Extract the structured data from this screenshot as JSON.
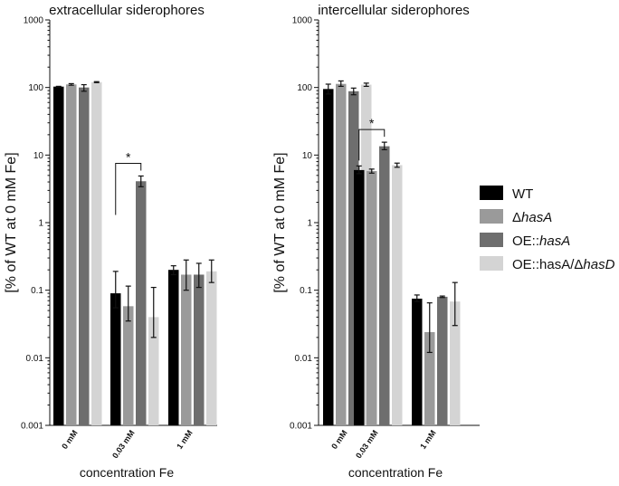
{
  "chart_data": [
    {
      "type": "bar",
      "title": "extracellular siderophores",
      "ylabel": "[% of WT at 0 mM Fe]",
      "xlabel": "concentration Fe",
      "yscale": "log",
      "ylim": [
        0.001,
        1000
      ],
      "yticks": [
        "0.001",
        "0.01",
        "0.1",
        "1",
        "10",
        "100",
        "1000"
      ],
      "categories": [
        "0 mM",
        "0.03 mM",
        "1 mM"
      ],
      "series": [
        {
          "name": "WT",
          "color": "#000000",
          "values": [
            103,
            0.09,
            0.2
          ],
          "errors": [
            [
              102,
              104
            ],
            [
              0.055,
              0.19
            ],
            [
              0.17,
              0.23
            ]
          ]
        },
        {
          "name": "ΔhasA",
          "color": "#9a9a9a",
          "values": [
            111,
            0.058,
            0.17
          ],
          "errors": [
            [
              108,
              114
            ],
            [
              0.035,
              0.115
            ],
            [
              0.1,
              0.28
            ]
          ]
        },
        {
          "name": "OE::hasA",
          "color": "#6e6e6e",
          "values": [
            100,
            4.1,
            0.17
          ],
          "errors": [
            [
              88,
              110
            ],
            [
              3.4,
              4.9
            ],
            [
              0.11,
              0.25
            ]
          ]
        },
        {
          "name": "OE::hasA/ΔhasD",
          "color": "#d4d4d4",
          "values": [
            120,
            0.04,
            0.19
          ],
          "errors": [
            [
              118,
              122
            ],
            [
              0.02,
              0.11
            ],
            [
              0.13,
              0.28
            ]
          ]
        }
      ],
      "annotations": [
        {
          "type": "significance",
          "label": "*",
          "category": "0.03 mM",
          "from_series": "WT",
          "to_series": "OE::hasA"
        }
      ]
    },
    {
      "type": "bar",
      "title": "intercellular siderophores",
      "ylabel": "[% of WT at 0 mM Fe]",
      "xlabel": "concentration Fe",
      "yscale": "log",
      "ylim": [
        0.001,
        1000
      ],
      "yticks": [
        "0.001",
        "0.01",
        "0.1",
        "1",
        "10",
        "100",
        "1000"
      ],
      "categories": [
        "0 mM",
        "0.03 mM",
        "1 mM"
      ],
      "series": [
        {
          "name": "WT",
          "color": "#000000",
          "values": [
            95,
            6,
            0.075
          ],
          "errors": [
            [
              80,
              112
            ],
            [
              5.3,
              6.9
            ],
            [
              0.068,
              0.085
            ]
          ]
        },
        {
          "name": "ΔhasA",
          "color": "#9a9a9a",
          "values": [
            113,
            5.8,
            0.024
          ],
          "errors": [
            [
              104,
              125
            ],
            [
              5.4,
              6.2
            ],
            [
              0.012,
              0.065
            ]
          ]
        },
        {
          "name": "OE::hasA",
          "color": "#6e6e6e",
          "values": [
            88,
            13.5,
            0.08
          ],
          "errors": [
            [
              78,
              98
            ],
            [
              12.0,
              15.5
            ],
            [
              0.078,
              0.082
            ]
          ]
        },
        {
          "name": "OE::hasA/ΔhasD",
          "color": "#d4d4d4",
          "values": [
            110,
            7.1,
            0.068
          ],
          "errors": [
            [
              104,
              116
            ],
            [
              6.6,
              7.6
            ],
            [
              0.03,
              0.13
            ]
          ]
        }
      ],
      "annotations": [
        {
          "type": "significance",
          "label": "*",
          "category": "0.03 mM",
          "from_series": "WT",
          "to_series": "OE::hasA"
        }
      ]
    }
  ],
  "legend": {
    "items": [
      {
        "prefix": "",
        "italic": "",
        "rest": "WT",
        "color": "#000000"
      },
      {
        "prefix": "Δ",
        "italic": "hasA",
        "rest": "",
        "color": "#9a9a9a"
      },
      {
        "prefix": "OE::",
        "italic": "hasA",
        "rest": "",
        "color": "#6e6e6e"
      },
      {
        "prefix": "OE::hasA/Δ",
        "italic": "hasD",
        "rest": "",
        "color": "#d4d4d4"
      }
    ]
  }
}
